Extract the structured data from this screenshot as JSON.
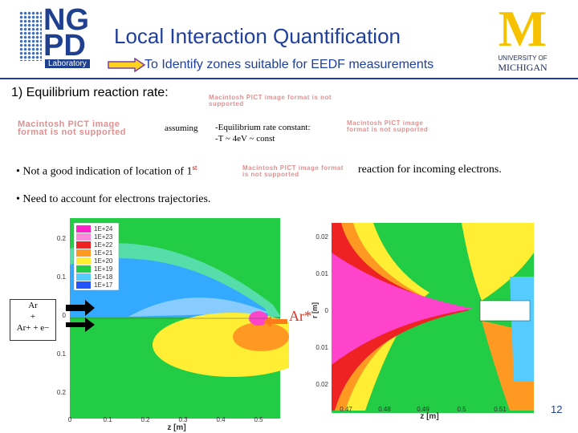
{
  "header": {
    "title": "Local Interaction Quantification",
    "subtitle": "To Identify zones suitable for EEDF measurements",
    "logo_left": {
      "line1": "NG",
      "line2": "PD",
      "line3": "Laboratory"
    },
    "logo_right": {
      "letter": "M",
      "line1": "UNIVERSITY OF",
      "line2": "MICHIGAN"
    }
  },
  "section": "1) Equilibrium reaction rate:",
  "pict_placeholder": "Macintosh PICT image format is not supported",
  "assuming": "assuming",
  "conditions": [
    "-Equilibrium rate constant:",
    "-T ~ 4eV ~ const"
  ],
  "bullets": [
    {
      "before": "Not a good indication of location of 1",
      "sup": "st",
      "after": "reaction for incoming electrons."
    },
    {
      "before": "Need to account for electrons trajectories."
    }
  ],
  "left_plot": {
    "yticks": [
      "0.2",
      "0.1",
      "0",
      "0.1",
      "0.2"
    ],
    "xticks": [
      "0",
      "0.1",
      "0.2",
      "0.3",
      "0.4",
      "0.5"
    ],
    "xlabel": "z [m]",
    "legend": [
      "1E+24",
      "1E+23",
      "1E+22",
      "1E+21",
      "1E+20",
      "1E+19",
      "1E+18",
      "1E+17"
    ]
  },
  "right_plot": {
    "yticks": [
      "0.02",
      "0.01",
      "0",
      "0.01",
      "0.02"
    ],
    "ylabel": "r [m]",
    "xticks": [
      "0.47",
      "0.48",
      "0.49",
      "0.5",
      "0.51"
    ],
    "xlabel": "z [m]"
  },
  "reaction": {
    "top": "Ar",
    "plus": "+",
    "bottom": "Ar+ + e−"
  },
  "excited": "Ar*",
  "page_number": "12"
}
